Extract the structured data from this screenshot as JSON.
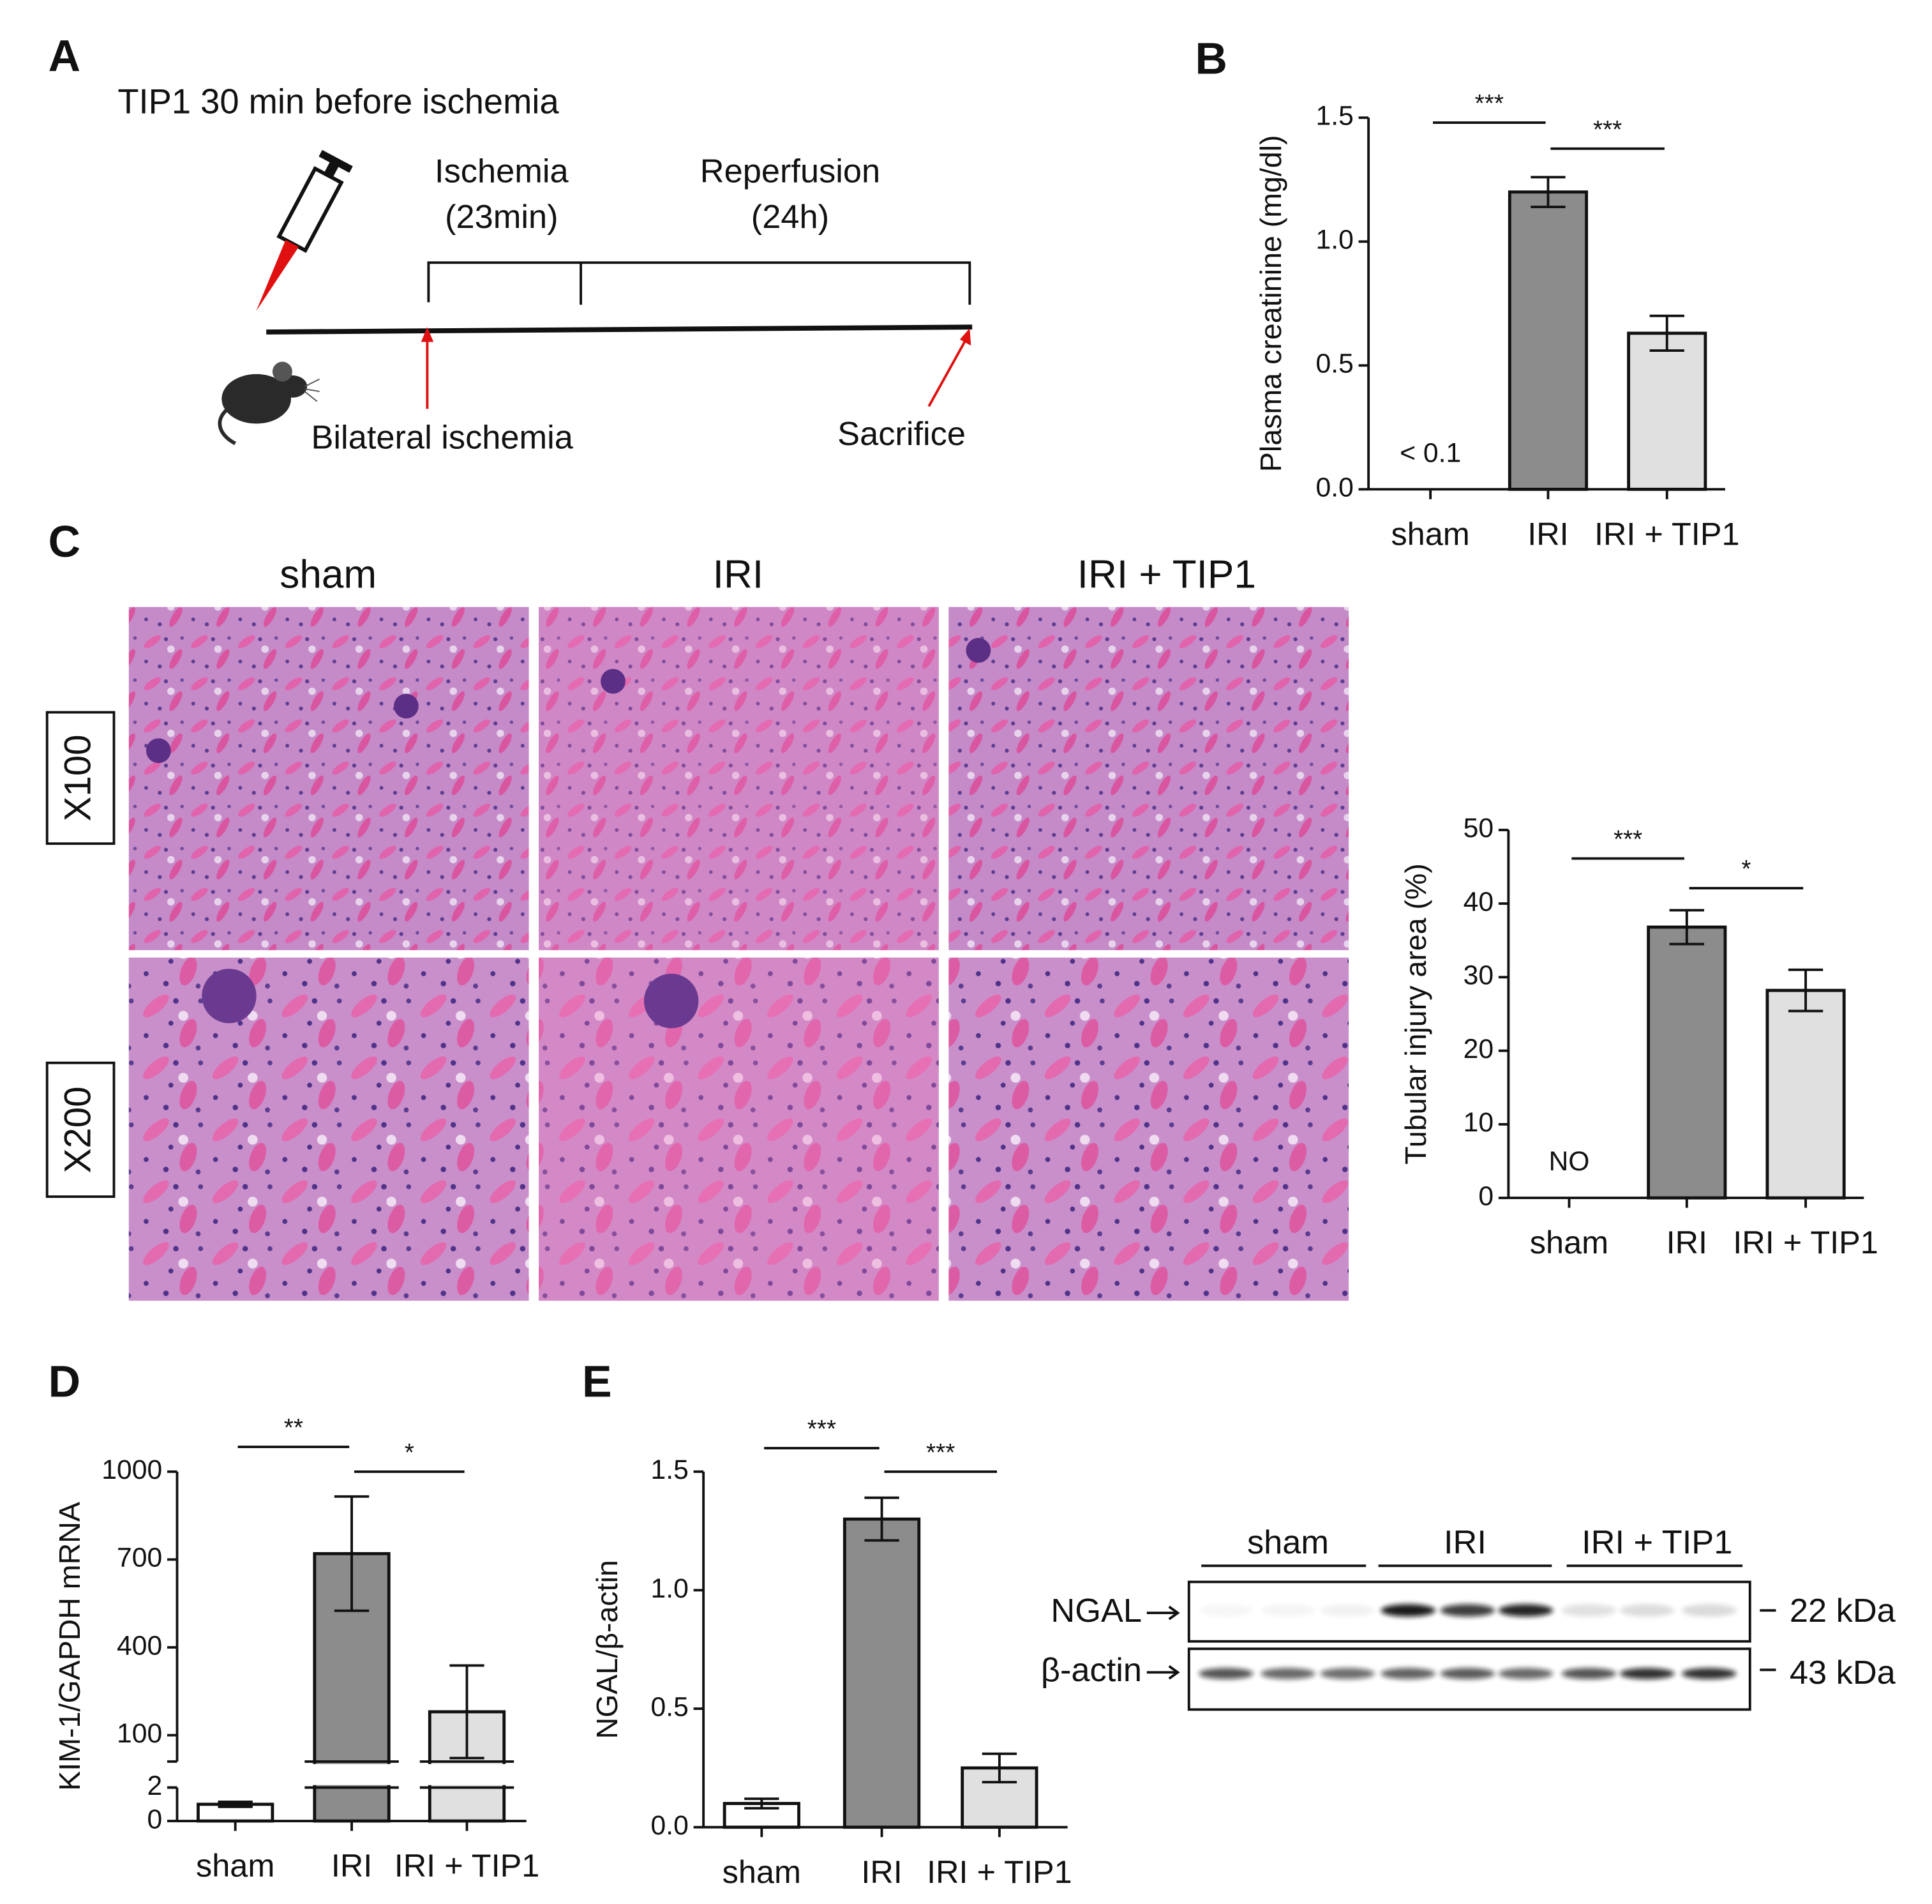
{
  "panel_labels": [
    "A",
    "B",
    "C",
    "D",
    "E"
  ],
  "protocol": {
    "title": "TIP1 30 min before ischemia",
    "phases": [
      {
        "name": "Ischemia",
        "duration": "(23min)"
      },
      {
        "name": "Reperfusion",
        "duration": "(24h)"
      }
    ],
    "events": [
      "Bilateral ischemia",
      "Sacrifice"
    ]
  },
  "histology": {
    "groups": [
      "sham",
      "IRI",
      "IRI + TIP1"
    ],
    "magnifications": [
      "X100",
      "X200"
    ]
  },
  "western_blot": {
    "groups": [
      "sham",
      "IRI",
      "IRI + TIP1"
    ],
    "rows": [
      {
        "name": "NGAL",
        "size": "22 kDa"
      },
      {
        "name": "β-actin",
        "size": "43 kDa"
      }
    ]
  },
  "chart_data": [
    {
      "type": "bar",
      "ylabel": "Plasma creatinine (mg/dl)",
      "categories": [
        "sham",
        "IRI",
        "IRI + TIP1"
      ],
      "values": [
        null,
        1.2,
        0.63
      ],
      "errors": [
        null,
        0.06,
        0.07
      ],
      "colors": [
        "#ffffff",
        "#8c8c8c",
        "#e0e0e0"
      ],
      "annotations": [
        "< 0.1",
        null,
        null
      ],
      "significance": [
        "***",
        "***"
      ],
      "ylim": [
        0,
        1.5
      ],
      "yticks": [
        {
          "value": 0,
          "label": "0.0"
        },
        0.5,
        {
          "value": 1,
          "label": "1.0"
        },
        1.5
      ]
    },
    {
      "type": "bar",
      "ylabel": "Tubular injury area (%)",
      "categories": [
        "sham",
        "IRI",
        "IRI + TIP1"
      ],
      "values": [
        null,
        36.8,
        28.2
      ],
      "errors": [
        null,
        2.3,
        2.8
      ],
      "colors": [
        "#ffffff",
        "#8c8c8c",
        "#e0e0e0"
      ],
      "annotations": [
        "NO",
        null,
        null
      ],
      "significance": [
        "***",
        "*"
      ],
      "ylim": [
        0,
        50
      ],
      "yticks": [
        0,
        10,
        20,
        30,
        40,
        50
      ]
    },
    {
      "type": "broken-bar",
      "ylabel": "KIM-1/GAPDH mRNA",
      "categories": [
        "sham",
        "IRI",
        "IRI + TIP1"
      ],
      "values": [
        1.0,
        720,
        180
      ],
      "errors": [
        0.15,
        195,
        158
      ],
      "colors": [
        "#ffffff",
        "#8c8c8c",
        "#e0e0e0"
      ],
      "significance": [
        "**",
        "*"
      ],
      "ysegments": [
        {
          "ylim": [
            0,
            2
          ],
          "yticks": [
            0,
            2
          ]
        },
        {
          "ylim": [
            10,
            1000
          ],
          "yticks": [
            100,
            400,
            700,
            1000
          ]
        }
      ]
    },
    {
      "type": "bar",
      "ylabel": "NGAL/β-actin",
      "categories": [
        "sham",
        "IRI",
        "IRI + TIP1"
      ],
      "values": [
        0.1,
        1.3,
        0.25
      ],
      "errors": [
        0.02,
        0.09,
        0.06
      ],
      "colors": [
        "#ffffff",
        "#8c8c8c",
        "#e0e0e0"
      ],
      "significance": [
        "***",
        "***"
      ],
      "ylim": [
        0,
        1.5
      ],
      "yticks": [
        {
          "value": 0,
          "label": "0.0"
        },
        0.5,
        {
          "value": 1,
          "label": "1.0"
        },
        1.5
      ]
    }
  ]
}
